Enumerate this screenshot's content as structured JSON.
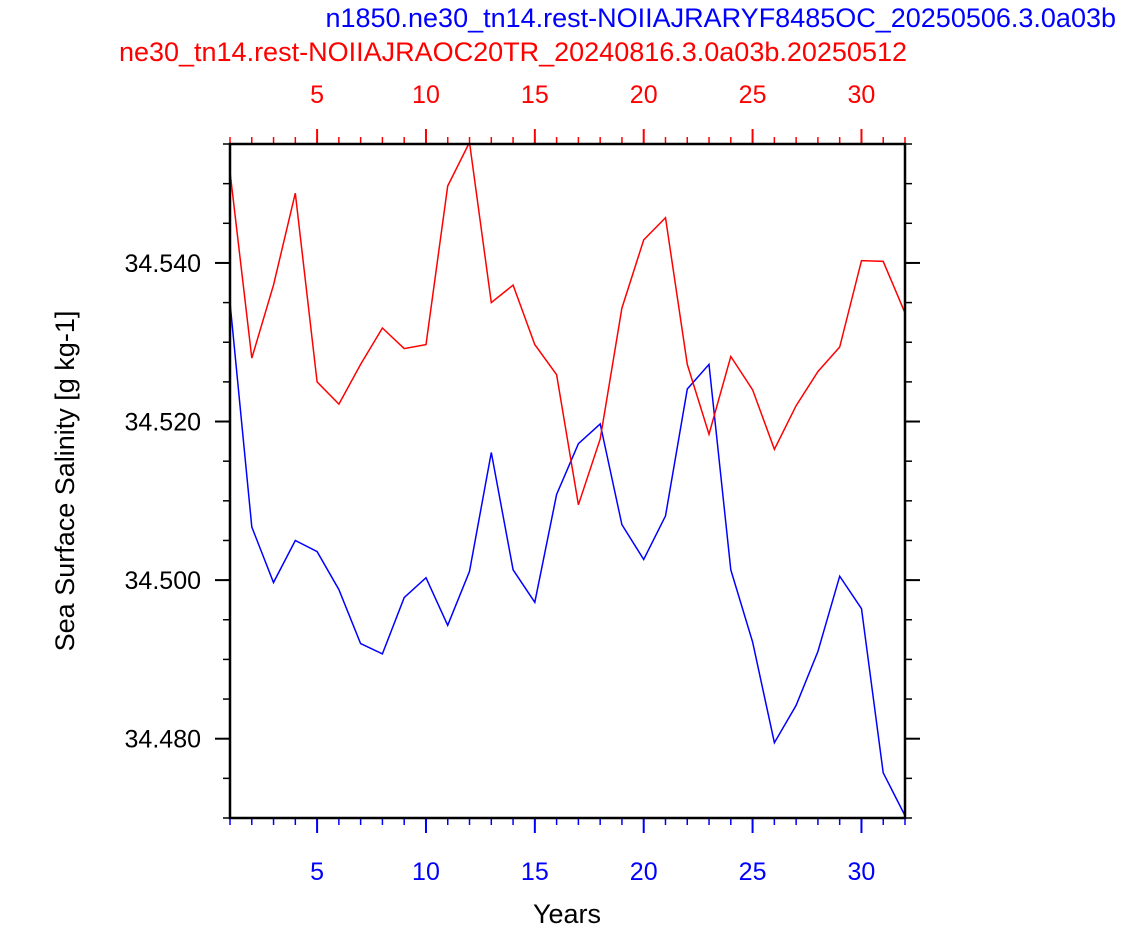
{
  "titles": {
    "top_blue": "n1850.ne30_tn14.rest-NOIIAJRARYF8485OC_20250506.3.0a03b",
    "top_red": "ne30_tn14.rest-NOIIAJRAOC20TR_20240816.3.0a03b.20250512"
  },
  "chart_data": {
    "type": "line",
    "xlabel": "Years",
    "ylabel": "Sea Surface Salinity [g kg-1]",
    "xlim": [
      1,
      32
    ],
    "ylim": [
      34.47,
      34.555
    ],
    "x_ticks": [
      5,
      10,
      15,
      20,
      25,
      30
    ],
    "y_ticks": [
      34.48,
      34.5,
      34.52,
      34.54
    ],
    "y_tick_labels": [
      "34.480",
      "34.500",
      "34.520",
      "34.540"
    ],
    "top_x_ticks": [
      5,
      10,
      15,
      20,
      25,
      30
    ],
    "colors": {
      "blue_series": "#0000ff",
      "red_series": "#ff0000"
    },
    "series": [
      {
        "color": "#0000ff",
        "x": [
          1,
          2,
          3,
          4,
          5,
          6,
          7,
          8,
          9,
          10,
          11,
          12,
          13,
          14,
          15,
          16,
          17,
          18,
          19,
          20,
          21,
          22,
          23,
          24,
          25,
          26,
          27,
          28,
          29,
          30,
          31,
          32
        ],
        "values": [
          34.535,
          34.5067,
          34.4997,
          34.505,
          34.5036,
          34.4988,
          34.492,
          34.4907,
          34.4978,
          34.5003,
          34.4943,
          34.5011,
          34.5161,
          34.5013,
          34.4972,
          34.5108,
          34.5172,
          34.5197,
          34.507,
          34.5026,
          34.5081,
          34.5241,
          34.5272,
          34.5013,
          34.4922,
          34.4795,
          34.4842,
          34.491,
          34.5005,
          34.4964,
          34.4757,
          34.4703
        ]
      },
      {
        "color": "#ff0000",
        "x": [
          1,
          2,
          3,
          4,
          5,
          6,
          7,
          8,
          9,
          10,
          11,
          12,
          13,
          14,
          15,
          16,
          17,
          18,
          19,
          20,
          21,
          22,
          23,
          24,
          25,
          26,
          27,
          28,
          29,
          30,
          31,
          32
        ],
        "values": [
          34.5515,
          34.528,
          34.5372,
          34.5488,
          34.525,
          34.5222,
          34.5272,
          34.5318,
          34.5292,
          34.5297,
          34.5497,
          34.5552,
          34.535,
          34.5372,
          34.5297,
          34.5259,
          34.5095,
          34.5178,
          34.5343,
          34.5429,
          34.5457,
          34.5272,
          34.5184,
          34.5282,
          34.524,
          34.5165,
          34.522,
          34.5263,
          34.5294,
          34.5403,
          34.5402,
          34.5337
        ]
      }
    ]
  }
}
